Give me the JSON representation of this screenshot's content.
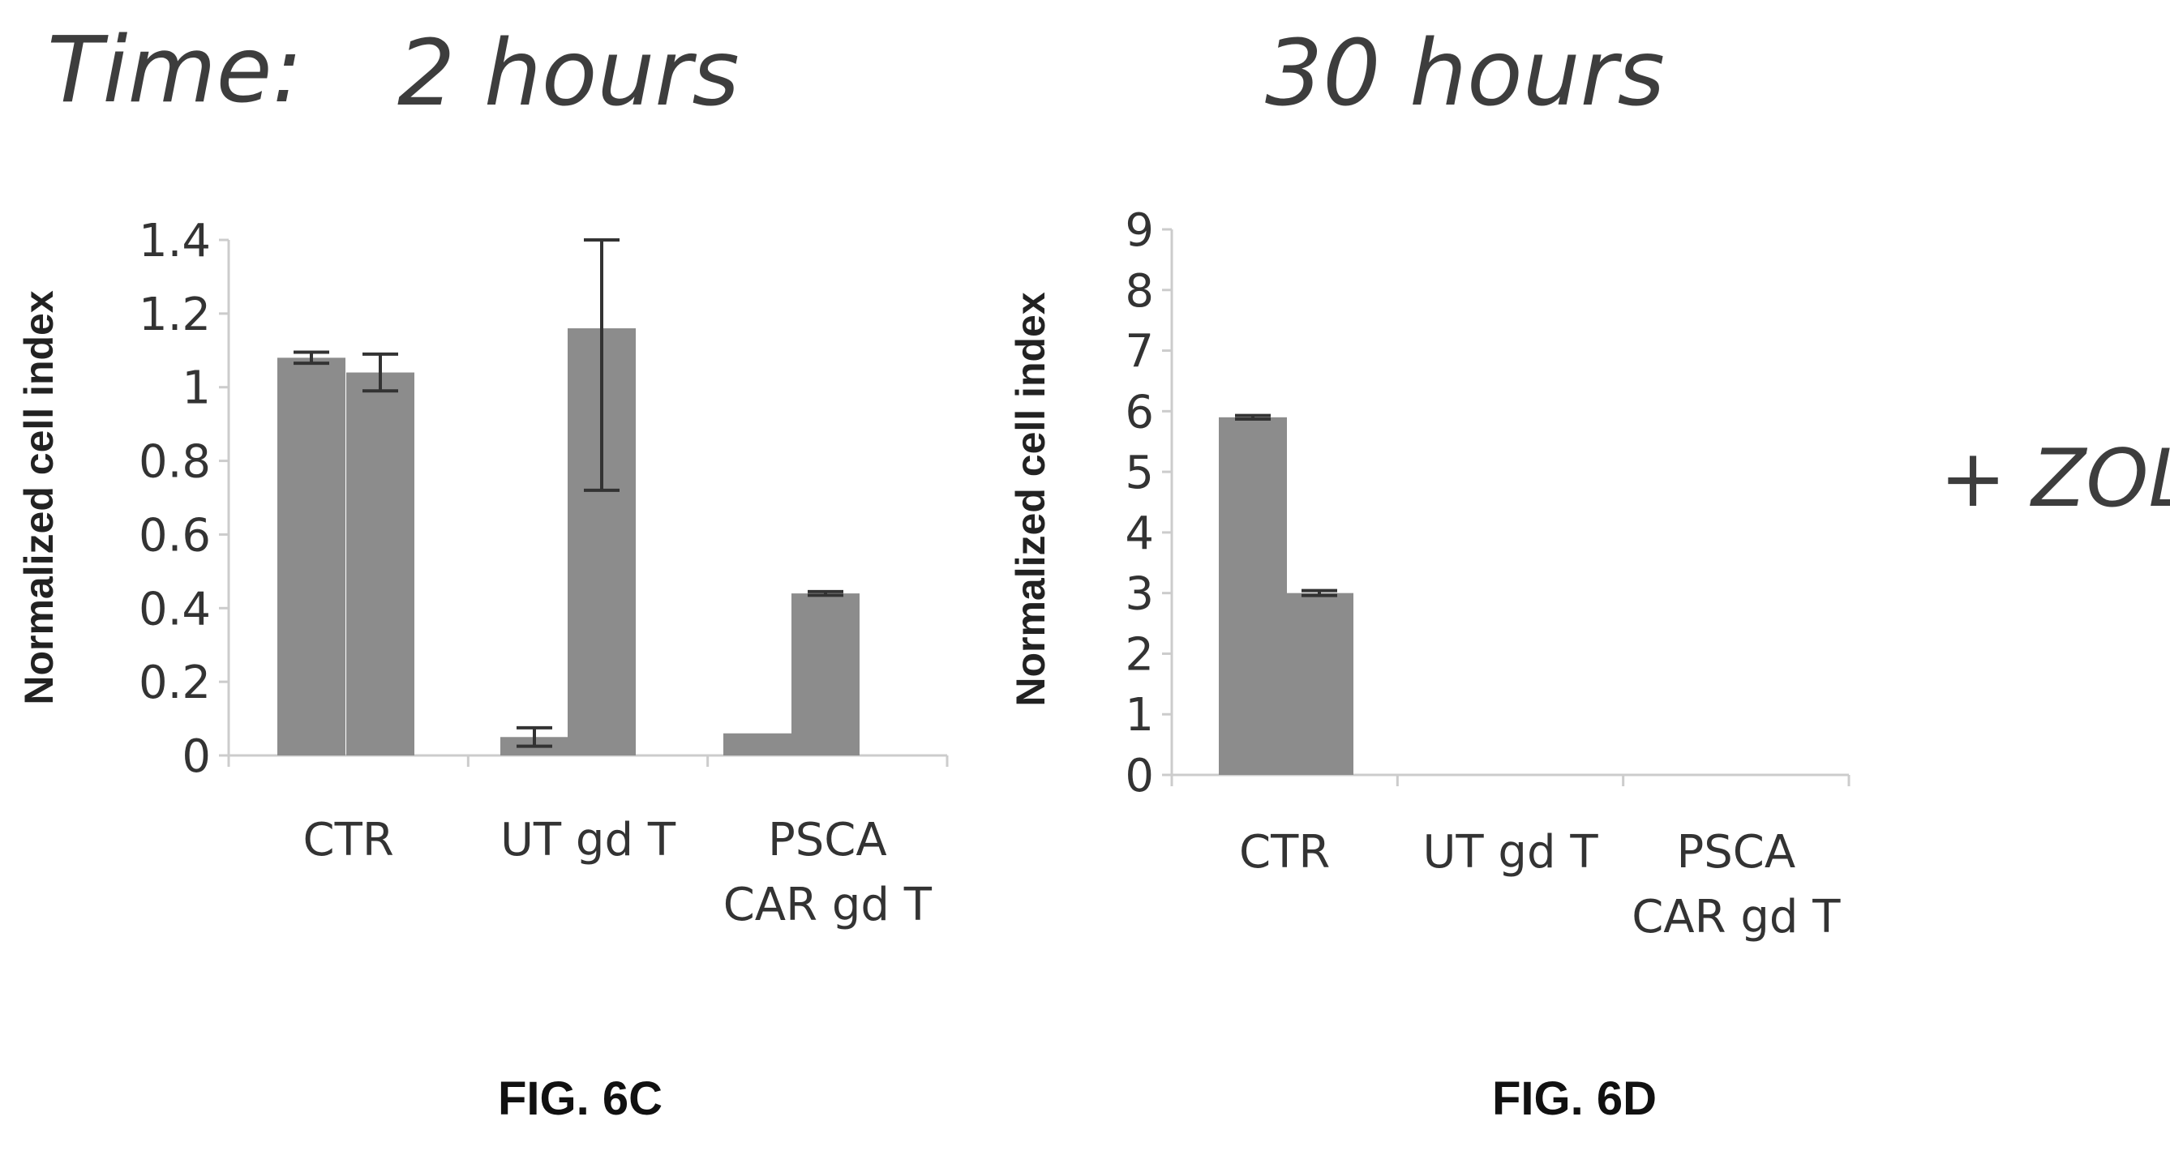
{
  "header": {
    "time_label": "Time:",
    "left_time": "2 hours",
    "right_time": "30 hours",
    "side_note": "+ ZOL"
  },
  "figures": {
    "left_label": "FIG. 6C",
    "right_label": "FIG. 6D"
  },
  "colors": {
    "bar": "#8c8c8c",
    "error_bar": "#333333",
    "axis": "#cccccc"
  },
  "chart_data": [
    {
      "type": "bar",
      "ylabel": "Normalized cell index",
      "categories": [
        [
          "CTR"
        ],
        [
          "UT gd T"
        ],
        [
          "PSCA",
          "CAR gd T"
        ]
      ],
      "ylim": [
        0,
        1.4
      ],
      "yticks": [
        "0",
        "0.2",
        "0.4",
        "0.6",
        "0.8",
        "1",
        "1.2",
        "1.4"
      ],
      "tick_values": [
        0,
        0.2,
        0.4,
        0.6,
        0.8,
        1,
        1.2,
        1.4
      ],
      "series": [
        {
          "values": [
            1.08,
            0.05,
            0.06
          ],
          "errors": [
            0.015,
            0.025,
            0
          ]
        },
        {
          "values": [
            1.04,
            1.16,
            0.44
          ],
          "errors": [
            0.05,
            0.44,
            0.005
          ]
        }
      ]
    },
    {
      "type": "bar",
      "ylabel": "Normalized cell index",
      "categories": [
        [
          "CTR"
        ],
        [
          "UT gd T"
        ],
        [
          "PSCA",
          "CAR gd T"
        ]
      ],
      "ylim": [
        0,
        9
      ],
      "yticks": [
        "0",
        "1",
        "2",
        "3",
        "4",
        "5",
        "6",
        "7",
        "8",
        "9"
      ],
      "tick_values": [
        0,
        1,
        2,
        3,
        4,
        5,
        6,
        7,
        8,
        9
      ],
      "series": [
        {
          "values": [
            5.9,
            0,
            0
          ],
          "errors": [
            0.03,
            0,
            0
          ]
        },
        {
          "values": [
            3.0,
            0,
            0
          ],
          "errors": [
            0.04,
            0,
            0
          ]
        }
      ]
    }
  ]
}
